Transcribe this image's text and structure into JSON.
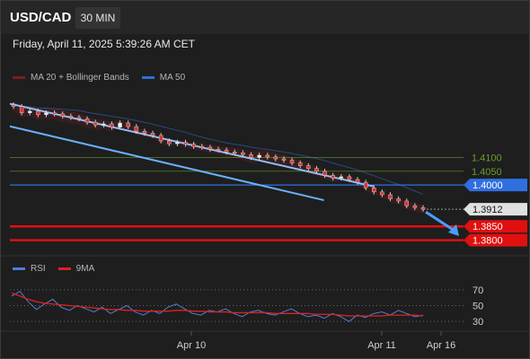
{
  "header": {
    "symbol": "USD/CAD",
    "timeframe": "30 MIN"
  },
  "datetime": "Friday, April 11, 2025 5:39:26 AM CET",
  "legend_main": [
    {
      "label": "MA 20 + Bollinger Bands",
      "color": "#7a1f1f"
    },
    {
      "label": "MA 50",
      "color": "#2f6fd6"
    }
  ],
  "legend_rsi": [
    {
      "label": "RSI",
      "color": "#4d7fd8"
    },
    {
      "label": "9MA",
      "color": "#dd2222"
    }
  ],
  "chart_data": [
    {
      "type": "line",
      "title": "USD/CAD",
      "x_ticks": [
        "Apr 10",
        "Apr 11",
        "Apr 16"
      ],
      "ylim": [
        1.374,
        1.4375
      ],
      "levels": [
        {
          "label": "1.4100",
          "value": 1.41,
          "color": "#6a9e2a",
          "style": "line-label"
        },
        {
          "label": "1.4050",
          "value": 1.405,
          "color": "#6a9e2a",
          "style": "line-label"
        },
        {
          "label": "1.4000",
          "value": 1.4,
          "color": "#2f6fe0",
          "style": "badge"
        },
        {
          "label": "1.3912",
          "value": 1.3912,
          "color": "#e0e0e0",
          "style": "current"
        },
        {
          "label": "1.3850",
          "value": 1.385,
          "color": "#e01010",
          "style": "badge"
        },
        {
          "label": "1.3800",
          "value": 1.38,
          "color": "#e01010",
          "style": "badge"
        }
      ],
      "channel": {
        "upper": [
          [
            0,
            1.4295
          ],
          [
            0.88,
            1.3995
          ]
        ],
        "lower": [
          [
            0,
            1.4213
          ],
          [
            0.76,
            1.3945
          ]
        ]
      },
      "close_series": [
        1.4285,
        1.4262,
        1.4268,
        1.4255,
        1.4262,
        1.4258,
        1.425,
        1.4245,
        1.424,
        1.4228,
        1.4218,
        1.4222,
        1.421,
        1.4225,
        1.4212,
        1.4195,
        1.4188,
        1.418,
        1.416,
        1.415,
        1.4155,
        1.4148,
        1.414,
        1.4137,
        1.413,
        1.4127,
        1.412,
        1.4117,
        1.411,
        1.41,
        1.4108,
        1.4102,
        1.4095,
        1.409,
        1.408,
        1.407,
        1.406,
        1.405,
        1.4035,
        1.4025,
        1.403,
        1.402,
        1.401,
        1.399,
        1.3975,
        1.3965,
        1.395,
        1.3942,
        1.3925,
        1.3918,
        1.3912
      ],
      "forecast_arrow": {
        "from": 1.3912,
        "to": 1.3805
      }
    },
    {
      "type": "line",
      "title": "RSI",
      "ylim": [
        20,
        80
      ],
      "y_ticks": [
        70,
        50,
        30
      ],
      "series": [
        {
          "name": "RSI",
          "values": [
            62,
            68,
            55,
            45,
            52,
            58,
            48,
            44,
            50,
            46,
            42,
            48,
            40,
            45,
            50,
            42,
            38,
            44,
            40,
            48,
            52,
            46,
            40,
            38,
            44,
            42,
            46,
            40,
            36,
            42,
            44,
            40,
            38,
            42,
            46,
            40,
            36,
            38,
            34,
            40,
            36,
            30,
            38,
            35,
            40,
            42,
            38,
            44,
            40,
            36,
            38
          ]
        },
        {
          "name": "9MA",
          "values": [
            66,
            62,
            58,
            55,
            53,
            52,
            51,
            50,
            49,
            48,
            47,
            46,
            45,
            45,
            44,
            44,
            43,
            43,
            43,
            43,
            44,
            44,
            43,
            43,
            42,
            42,
            42,
            41,
            41,
            41,
            41,
            41,
            40,
            40,
            40,
            40,
            40,
            39,
            39,
            39,
            38,
            37,
            37,
            37,
            37,
            37,
            38,
            38,
            38,
            38,
            37
          ]
        }
      ]
    }
  ]
}
